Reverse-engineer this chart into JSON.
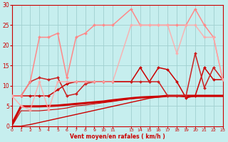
{
  "xlabel": "Vent moyen/en rafales ( km/h )",
  "background_color": "#c6eeee",
  "grid_color": "#a0d0d0",
  "xlim": [
    0,
    23
  ],
  "ylim": [
    0,
    30
  ],
  "xticks": [
    0,
    1,
    2,
    3,
    4,
    5,
    6,
    7,
    8,
    9,
    10,
    11,
    13,
    14,
    15,
    16,
    17,
    18,
    19,
    20,
    21,
    22,
    23
  ],
  "yticks": [
    0,
    5,
    10,
    15,
    20,
    25,
    30
  ],
  "figsize": [
    3.2,
    2.0
  ],
  "dpi": 100,
  "lines": [
    {
      "x": [
        0,
        1,
        2,
        3,
        4,
        5,
        6,
        7,
        8,
        9,
        10,
        11,
        13,
        14,
        15,
        16,
        17,
        18,
        19,
        20,
        21,
        22,
        23
      ],
      "y": [
        0,
        0,
        0.4,
        0.9,
        1.4,
        1.9,
        2.4,
        2.9,
        3.4,
        3.9,
        4.4,
        4.9,
        5.9,
        6.4,
        6.9,
        7.2,
        7.5,
        7.5,
        7.2,
        7.4,
        7.4,
        7.4,
        7.4
      ],
      "color": "#cc0000",
      "lw": 1.0,
      "marker": null,
      "ms": 0,
      "alpha": 1.0
    },
    {
      "x": [
        0,
        1,
        2,
        3,
        4,
        5,
        6,
        7,
        8,
        9,
        10,
        11,
        13,
        14,
        15,
        16,
        17,
        18,
        19,
        20,
        21,
        22,
        23
      ],
      "y": [
        0.5,
        4.9,
        4.9,
        4.9,
        5.0,
        5.1,
        5.3,
        5.5,
        5.7,
        5.9,
        6.1,
        6.4,
        6.9,
        7.1,
        7.2,
        7.3,
        7.5,
        7.5,
        7.5,
        7.5,
        7.5,
        7.5,
        7.5
      ],
      "color": "#cc0000",
      "lw": 2.2,
      "marker": null,
      "ms": 0,
      "alpha": 1.0
    },
    {
      "x": [
        0,
        1,
        2,
        3,
        4,
        5,
        6,
        7,
        8,
        9,
        10,
        11,
        13,
        14,
        15,
        16,
        17,
        18,
        19,
        20,
        21,
        22,
        23
      ],
      "y": [
        0,
        3.8,
        3.8,
        3.8,
        4.0,
        4.2,
        4.5,
        5.0,
        5.2,
        5.5,
        5.8,
        6.1,
        6.8,
        7.0,
        7.2,
        7.3,
        7.5,
        7.5,
        7.5,
        7.5,
        7.5,
        7.5,
        7.5
      ],
      "color": "#cc0000",
      "lw": 0.8,
      "marker": null,
      "ms": 0,
      "alpha": 1.0
    },
    {
      "x": [
        0,
        1,
        2,
        3,
        4,
        5,
        6,
        7,
        8,
        9,
        10,
        11,
        13,
        14,
        15,
        16,
        17,
        18,
        19,
        20,
        21,
        22,
        23
      ],
      "y": [
        7.5,
        7.5,
        7.5,
        7.5,
        7.5,
        9.0,
        10.5,
        11.0,
        11.0,
        11.0,
        11.0,
        11.0,
        11.0,
        14.5,
        11.0,
        14.5,
        14.0,
        11.0,
        7.0,
        7.5,
        14.5,
        11.5,
        11.5
      ],
      "color": "#cc0000",
      "lw": 1.1,
      "marker": "D",
      "ms": 2.0,
      "alpha": 1.0
    },
    {
      "x": [
        0,
        1,
        2,
        3,
        4,
        5,
        6,
        7,
        8,
        9,
        10,
        11,
        13,
        14,
        15,
        16,
        17,
        18,
        19,
        20,
        21,
        22,
        23
      ],
      "y": [
        7.5,
        7.5,
        11.0,
        12.0,
        11.5,
        12.0,
        7.5,
        8.0,
        10.5,
        11.0,
        11.0,
        11.0,
        11.0,
        11.0,
        11.0,
        11.0,
        7.5,
        7.5,
        7.5,
        18.0,
        9.5,
        14.5,
        11.5
      ],
      "color": "#cc2222",
      "lw": 1.1,
      "marker": "D",
      "ms": 2.0,
      "alpha": 1.0
    },
    {
      "x": [
        0,
        1,
        2,
        3,
        4,
        5,
        6,
        7,
        8,
        9,
        10,
        11,
        13,
        14,
        15,
        16,
        17,
        18,
        19,
        20,
        21,
        22,
        23
      ],
      "y": [
        7.5,
        7.5,
        11.0,
        22.0,
        22.0,
        23.0,
        12.0,
        22.0,
        23.0,
        25.0,
        25.0,
        25.0,
        29.0,
        25.0,
        25.0,
        25.0,
        25.0,
        25.0,
        25.0,
        29.0,
        25.0,
        22.0,
        11.5
      ],
      "color": "#ff8888",
      "lw": 1.1,
      "marker": "D",
      "ms": 2.0,
      "alpha": 1.0
    },
    {
      "x": [
        0,
        1,
        2,
        3,
        4,
        5,
        6,
        7,
        8,
        9,
        10,
        11,
        13,
        14,
        15,
        16,
        17,
        18,
        19,
        20,
        21,
        22,
        23
      ],
      "y": [
        7.5,
        5.0,
        4.0,
        11.0,
        4.0,
        11.0,
        11.0,
        11.0,
        11.0,
        11.0,
        11.0,
        11.0,
        25.0,
        25.0,
        25.0,
        25.0,
        25.0,
        18.0,
        25.0,
        25.0,
        22.0,
        22.0,
        11.5
      ],
      "color": "#ffaaaa",
      "lw": 1.1,
      "marker": "D",
      "ms": 2.0,
      "alpha": 0.85
    }
  ]
}
